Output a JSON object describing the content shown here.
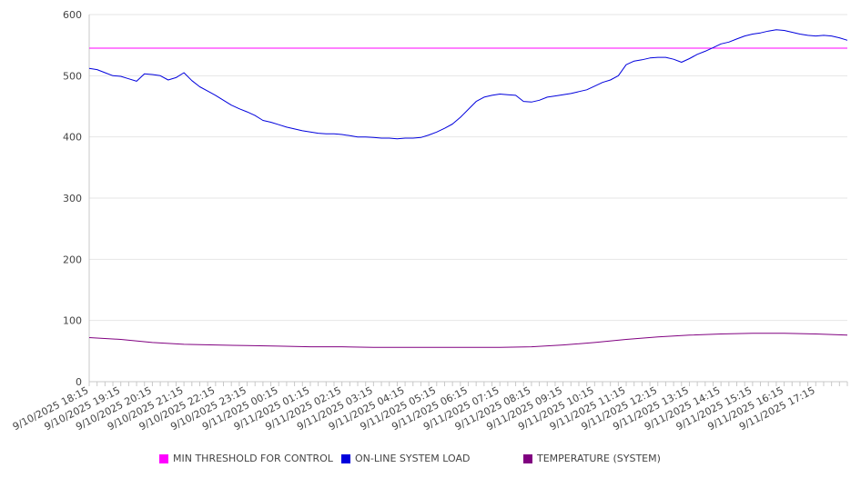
{
  "chart_data": {
    "type": "line",
    "title": "",
    "xlabel": "",
    "ylabel": "",
    "ylim": [
      0,
      600
    ],
    "yticks": [
      0,
      100,
      200,
      300,
      400,
      500,
      600
    ],
    "grid": true,
    "legend_position": "bottom",
    "x_tick_labels": [
      "9/10/2025 18:15",
      "9/10/2025 19:15",
      "9/10/2025 20:15",
      "9/10/2025 21:15",
      "9/10/2025 22:15",
      "9/10/2025 23:15",
      "9/11/2025 00:15",
      "9/11/2025 01:15",
      "9/11/2025 02:15",
      "9/11/2025 03:15",
      "9/11/2025 04:15",
      "9/11/2025 05:15",
      "9/11/2025 06:15",
      "9/11/2025 07:15",
      "9/11/2025 08:15",
      "9/11/2025 09:15",
      "9/11/2025 10:15",
      "9/11/2025 11:15",
      "9/11/2025 12:15",
      "9/11/2025 13:15",
      "9/11/2025 14:15",
      "9/11/2025 15:15",
      "9/11/2025 16:15",
      "9/11/2025 17:15"
    ],
    "x_range": [
      "9/10/2025 18:15",
      "9/11/2025 18:15"
    ],
    "series": [
      {
        "name": "MIN THRESHOLD FOR CONTROL",
        "color": "#ff00ff",
        "points": [
          [
            "9/10/2025 18:15",
            545
          ],
          [
            "9/11/2025 18:15",
            545
          ]
        ]
      },
      {
        "name": "ON-LINE SYSTEM LOAD",
        "color": "#0000dd",
        "points": [
          [
            "9/10/2025 18:15",
            512
          ],
          [
            "9/10/2025 18:30",
            510
          ],
          [
            "9/10/2025 18:45",
            505
          ],
          [
            "9/10/2025 19:00",
            500
          ],
          [
            "9/10/2025 19:15",
            499
          ],
          [
            "9/10/2025 19:30",
            495
          ],
          [
            "9/10/2025 19:45",
            491
          ],
          [
            "9/10/2025 20:00",
            503
          ],
          [
            "9/10/2025 20:15",
            502
          ],
          [
            "9/10/2025 20:30",
            500
          ],
          [
            "9/10/2025 20:45",
            493
          ],
          [
            "9/10/2025 21:00",
            497
          ],
          [
            "9/10/2025 21:15",
            505
          ],
          [
            "9/10/2025 21:30",
            492
          ],
          [
            "9/10/2025 21:45",
            482
          ],
          [
            "9/10/2025 22:00",
            475
          ],
          [
            "9/10/2025 22:15",
            468
          ],
          [
            "9/10/2025 22:30",
            460
          ],
          [
            "9/10/2025 22:45",
            452
          ],
          [
            "9/10/2025 23:00",
            446
          ],
          [
            "9/10/2025 23:15",
            441
          ],
          [
            "9/10/2025 23:30",
            435
          ],
          [
            "9/10/2025 23:45",
            427
          ],
          [
            "9/11/2025 00:00",
            424
          ],
          [
            "9/11/2025 00:15",
            420
          ],
          [
            "9/11/2025 00:30",
            416
          ],
          [
            "9/11/2025 00:45",
            413
          ],
          [
            "9/11/2025 01:00",
            410
          ],
          [
            "9/11/2025 01:15",
            408
          ],
          [
            "9/11/2025 01:30",
            406
          ],
          [
            "9/11/2025 01:45",
            405
          ],
          [
            "9/11/2025 02:00",
            405
          ],
          [
            "9/11/2025 02:15",
            404
          ],
          [
            "9/11/2025 02:30",
            402
          ],
          [
            "9/11/2025 02:45",
            400
          ],
          [
            "9/11/2025 03:00",
            400
          ],
          [
            "9/11/2025 03:15",
            399
          ],
          [
            "9/11/2025 03:30",
            398
          ],
          [
            "9/11/2025 03:45",
            398
          ],
          [
            "9/11/2025 04:00",
            397
          ],
          [
            "9/11/2025 04:15",
            398
          ],
          [
            "9/11/2025 04:30",
            398
          ],
          [
            "9/11/2025 04:45",
            399
          ],
          [
            "9/11/2025 05:00",
            403
          ],
          [
            "9/11/2025 05:15",
            408
          ],
          [
            "9/11/2025 05:30",
            414
          ],
          [
            "9/11/2025 05:45",
            421
          ],
          [
            "9/11/2025 06:00",
            432
          ],
          [
            "9/11/2025 06:15",
            445
          ],
          [
            "9/11/2025 06:30",
            458
          ],
          [
            "9/11/2025 06:45",
            465
          ],
          [
            "9/11/2025 07:00",
            468
          ],
          [
            "9/11/2025 07:15",
            470
          ],
          [
            "9/11/2025 07:30",
            469
          ],
          [
            "9/11/2025 07:45",
            468
          ],
          [
            "9/11/2025 08:00",
            458
          ],
          [
            "9/11/2025 08:15",
            457
          ],
          [
            "9/11/2025 08:30",
            460
          ],
          [
            "9/11/2025 08:45",
            465
          ],
          [
            "9/11/2025 09:00",
            467
          ],
          [
            "9/11/2025 09:15",
            469
          ],
          [
            "9/11/2025 09:30",
            471
          ],
          [
            "9/11/2025 09:45",
            474
          ],
          [
            "9/11/2025 10:00",
            477
          ],
          [
            "9/11/2025 10:15",
            483
          ],
          [
            "9/11/2025 10:30",
            489
          ],
          [
            "9/11/2025 10:45",
            493
          ],
          [
            "9/11/2025 11:00",
            500
          ],
          [
            "9/11/2025 11:15",
            518
          ],
          [
            "9/11/2025 11:30",
            524
          ],
          [
            "9/11/2025 11:45",
            526
          ],
          [
            "9/11/2025 12:00",
            529
          ],
          [
            "9/11/2025 12:15",
            530
          ],
          [
            "9/11/2025 12:30",
            530
          ],
          [
            "9/11/2025 12:45",
            527
          ],
          [
            "9/11/2025 13:00",
            522
          ],
          [
            "9/11/2025 13:15",
            528
          ],
          [
            "9/11/2025 13:30",
            535
          ],
          [
            "9/11/2025 13:45",
            540
          ],
          [
            "9/11/2025 14:00",
            546
          ],
          [
            "9/11/2025 14:15",
            552
          ],
          [
            "9/11/2025 14:30",
            555
          ],
          [
            "9/11/2025 14:45",
            560
          ],
          [
            "9/11/2025 15:00",
            565
          ],
          [
            "9/11/2025 15:15",
            568
          ],
          [
            "9/11/2025 15:30",
            570
          ],
          [
            "9/11/2025 15:45",
            573
          ],
          [
            "9/11/2025 16:00",
            575
          ],
          [
            "9/11/2025 16:15",
            574
          ],
          [
            "9/11/2025 16:30",
            571
          ],
          [
            "9/11/2025 16:45",
            568
          ],
          [
            "9/11/2025 17:00",
            566
          ],
          [
            "9/11/2025 17:15",
            565
          ],
          [
            "9/11/2025 17:30",
            566
          ],
          [
            "9/11/2025 17:45",
            565
          ],
          [
            "9/11/2025 18:00",
            562
          ],
          [
            "9/11/2025 18:15",
            558
          ]
        ]
      },
      {
        "name": "TEMPERATURE (SYSTEM)",
        "color": "#800080",
        "points": [
          [
            "9/10/2025 18:15",
            72
          ],
          [
            "9/10/2025 19:15",
            69
          ],
          [
            "9/10/2025 20:15",
            64
          ],
          [
            "9/10/2025 21:15",
            61
          ],
          [
            "9/10/2025 22:15",
            60
          ],
          [
            "9/10/2025 23:15",
            59
          ],
          [
            "9/11/2025 00:15",
            58
          ],
          [
            "9/11/2025 01:15",
            57
          ],
          [
            "9/11/2025 02:15",
            57
          ],
          [
            "9/11/2025 03:15",
            56
          ],
          [
            "9/11/2025 04:15",
            56
          ],
          [
            "9/11/2025 05:15",
            56
          ],
          [
            "9/11/2025 06:15",
            56
          ],
          [
            "9/11/2025 07:15",
            56
          ],
          [
            "9/11/2025 08:15",
            57
          ],
          [
            "9/11/2025 09:15",
            60
          ],
          [
            "9/11/2025 10:15",
            64
          ],
          [
            "9/11/2025 11:15",
            69
          ],
          [
            "9/11/2025 12:15",
            73
          ],
          [
            "9/11/2025 13:15",
            76
          ],
          [
            "9/11/2025 14:15",
            78
          ],
          [
            "9/11/2025 15:15",
            79
          ],
          [
            "9/11/2025 16:15",
            79
          ],
          [
            "9/11/2025 17:15",
            78
          ],
          [
            "9/11/2025 18:15",
            76
          ]
        ]
      }
    ]
  }
}
